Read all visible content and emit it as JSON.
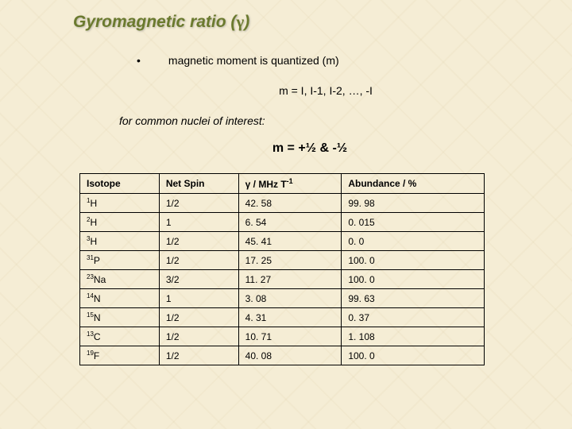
{
  "title_prefix": "Gyromagnetic ratio (",
  "title_gamma": "γ",
  "title_suffix": ")",
  "bullet_text": "magnetic moment is quantized (m)",
  "formula1": "m = I, I-1, I-2, …, -I",
  "subtitle": "for common nuclei of interest:",
  "formula2": "m = +½  &  -½",
  "table": {
    "headers": {
      "isotope": "Isotope",
      "spin": "Net Spin",
      "gamma_prefix": "γ",
      "gamma_mid": " / MHz T",
      "gamma_sup": "-1",
      "abundance": "Abundance / %"
    },
    "rows": [
      {
        "mass": "1",
        "elem": "H",
        "spin": "1/2",
        "gamma": "42. 58",
        "abund": "99. 98"
      },
      {
        "mass": "2",
        "elem": "H",
        "spin": "1",
        "gamma": "6. 54",
        "abund": "0. 015"
      },
      {
        "mass": "3",
        "elem": "H",
        "spin": "1/2",
        "gamma": "45. 41",
        "abund": "0. 0"
      },
      {
        "mass": "31",
        "elem": "P",
        "spin": "1/2",
        "gamma": "17. 25",
        "abund": "100. 0"
      },
      {
        "mass": "23",
        "elem": "Na",
        "spin": "3/2",
        "gamma": "11. 27",
        "abund": "100. 0"
      },
      {
        "mass": "14",
        "elem": "N",
        "spin": "1",
        "gamma": "3. 08",
        "abund": "99. 63"
      },
      {
        "mass": "15",
        "elem": "N",
        "spin": "1/2",
        "gamma": "4. 31",
        "abund": "0. 37"
      },
      {
        "mass": "13",
        "elem": "C",
        "spin": "1/2",
        "gamma": "10. 71",
        "abund": "1. 108"
      },
      {
        "mass": "19",
        "elem": "F",
        "spin": "1/2",
        "gamma": "40. 08",
        "abund": "100. 0"
      }
    ]
  }
}
